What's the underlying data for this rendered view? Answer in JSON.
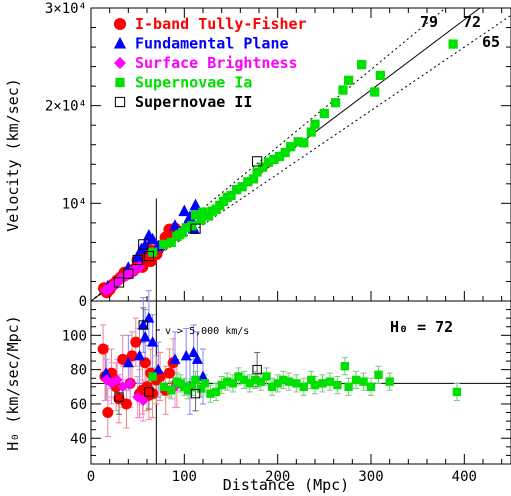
{
  "chart_data": [
    {
      "type": "scatter",
      "panel": "top",
      "xlim": [
        0,
        450
      ],
      "ylim": [
        0,
        30000
      ],
      "ylabel": "Velocity (km/sec)",
      "yticks": [
        {
          "value": 0,
          "label": "0"
        },
        {
          "value": 10000,
          "label": "10⁴"
        },
        {
          "value": 20000,
          "label": "2×10⁴"
        },
        {
          "value": 30000,
          "label": "3×10⁴"
        }
      ],
      "hubble_lines": [
        {
          "label": "79",
          "H0": 79,
          "style": "dotted"
        },
        {
          "label": "72",
          "H0": 72,
          "style": "solid"
        },
        {
          "label": "65",
          "H0": 65,
          "style": "dotted"
        }
      ],
      "vline_x": 70,
      "series": [
        {
          "name": "I-band Tully-Fisher",
          "color": "#ff0000",
          "marker": "circle",
          "points": [
            [
              14,
              1300
            ],
            [
              17,
              900
            ],
            [
              20,
              1200
            ],
            [
              24,
              1700
            ],
            [
              28,
              2100
            ],
            [
              32,
              2400
            ],
            [
              36,
              2900
            ],
            [
              40,
              2800
            ],
            [
              45,
              3100
            ],
            [
              47,
              3300
            ],
            [
              50,
              4200
            ],
            [
              52,
              4300
            ],
            [
              55,
              3500
            ],
            [
              58,
              5000
            ],
            [
              60,
              4700
            ],
            [
              62,
              5200
            ],
            [
              64,
              4100
            ],
            [
              66,
              5100
            ],
            [
              70,
              4800
            ],
            [
              74,
              5600
            ],
            [
              80,
              6500
            ],
            [
              84,
              7300
            ],
            [
              86,
              7100
            ],
            [
              90,
              7400
            ]
          ]
        },
        {
          "name": "Fundamental Plane",
          "color": "#0000ff",
          "marker": "triangle",
          "points": [
            [
              18,
              1500
            ],
            [
              40,
              3400
            ],
            [
              50,
              4500
            ],
            [
              54,
              5300
            ],
            [
              58,
              5700
            ],
            [
              62,
              6700
            ],
            [
              66,
              6300
            ],
            [
              72,
              5600
            ],
            [
              90,
              7700
            ],
            [
              100,
              9200
            ],
            [
              103,
              8000
            ],
            [
              106,
              8600
            ],
            [
              110,
              7400
            ],
            [
              112,
              9800
            ]
          ]
        },
        {
          "name": "Surface Brightness",
          "color": "#ff00ff",
          "marker": "diamond",
          "points": [
            [
              16,
              1100
            ],
            [
              20,
              1300
            ],
            [
              26,
              1800
            ],
            [
              32,
              2300
            ],
            [
              38,
              2600
            ],
            [
              42,
              2900
            ],
            [
              46,
              3100
            ],
            [
              52,
              3500
            ]
          ]
        },
        {
          "name": "Supernovae Ia",
          "color": "#00e000",
          "marker": "square",
          "points": [
            [
              66,
              5000
            ],
            [
              78,
              5800
            ],
            [
              86,
              6000
            ],
            [
              92,
              6600
            ],
            [
              95,
              6800
            ],
            [
              98,
              7000
            ],
            [
              102,
              7500
            ],
            [
              108,
              7700
            ],
            [
              112,
              8800
            ],
            [
              118,
              8300
            ],
            [
              120,
              9100
            ],
            [
              126,
              8700
            ],
            [
              130,
              9200
            ],
            [
              134,
              9400
            ],
            [
              138,
              9800
            ],
            [
              142,
              10200
            ],
            [
              146,
              10600
            ],
            [
              150,
              10800
            ],
            [
              156,
              11400
            ],
            [
              162,
              11700
            ],
            [
              168,
              12200
            ],
            [
              174,
              12500
            ],
            [
              178,
              13200
            ],
            [
              184,
              13700
            ],
            [
              190,
              14200
            ],
            [
              196,
              14500
            ],
            [
              202,
              14800
            ],
            [
              208,
              15200
            ],
            [
              214,
              15800
            ],
            [
              222,
              16300
            ],
            [
              228,
              16200
            ],
            [
              236,
              17300
            ],
            [
              240,
              18100
            ],
            [
              250,
              19200
            ],
            [
              262,
              20300
            ],
            [
              270,
              21600
            ],
            [
              276,
              22600
            ],
            [
              290,
              24200
            ],
            [
              304,
              21400
            ],
            [
              310,
              23100
            ],
            [
              388,
              26300
            ]
          ]
        },
        {
          "name": "Supernovae II",
          "color": "#000000",
          "marker": "open-square",
          "points": [
            [
              30,
              1900
            ],
            [
              40,
              2800
            ],
            [
              50,
              4200
            ],
            [
              56,
              5800
            ],
            [
              62,
              4600
            ],
            [
              112,
              7400
            ],
            [
              178,
              14300
            ]
          ]
        }
      ]
    },
    {
      "type": "scatter",
      "panel": "bottom",
      "xlabel": "Distance (Mpc)",
      "ylabel": "H₀ (km/sec/Mpc)",
      "xlim": [
        0,
        450
      ],
      "ylim": [
        25,
        120
      ],
      "xticks": [
        0,
        100,
        200,
        300,
        400
      ],
      "yticks": [
        40,
        60,
        80,
        100
      ],
      "hline": 72,
      "vline_x": 70,
      "annotation_h0": "H₀  = 72",
      "annotation_cut": "v > 5,000 km/s",
      "series": [
        {
          "name": "I-band Tully-Fisher",
          "color": "#ff0000",
          "marker": "circle",
          "err": 14,
          "points": [
            [
              13,
              92
            ],
            [
              15,
              76
            ],
            [
              18,
              55
            ],
            [
              22,
              78
            ],
            [
              27,
              70
            ],
            [
              30,
              63
            ],
            [
              34,
              86
            ],
            [
              38,
              60
            ],
            [
              42,
              72
            ],
            [
              44,
              88
            ],
            [
              48,
              96
            ],
            [
              52,
              66
            ],
            [
              55,
              68
            ],
            [
              58,
              84
            ],
            [
              60,
              70
            ],
            [
              62,
              65
            ],
            [
              64,
              78
            ],
            [
              66,
              66
            ],
            [
              70,
              74
            ],
            [
              74,
              76
            ],
            [
              80,
              68
            ],
            [
              84,
              78
            ],
            [
              88,
              84
            ],
            [
              92,
              72
            ]
          ]
        },
        {
          "name": "Fundamental Plane",
          "color": "#0000ff",
          "marker": "triangle",
          "err": 16,
          "points": [
            [
              16,
              78
            ],
            [
              40,
              84
            ],
            [
              52,
              88
            ],
            [
              56,
              106
            ],
            [
              58,
              99
            ],
            [
              62,
              110
            ],
            [
              66,
              96
            ],
            [
              72,
              80
            ],
            [
              90,
              86
            ],
            [
              102,
              88
            ],
            [
              106,
              70
            ],
            [
              110,
              90
            ],
            [
              114,
              86
            ],
            [
              120,
              76
            ]
          ]
        },
        {
          "name": "Surface Brightness",
          "color": "#ff00ff",
          "marker": "diamond",
          "err": 12,
          "points": [
            [
              17,
              74
            ],
            [
              22,
              72
            ],
            [
              28,
              74
            ],
            [
              34,
              70
            ],
            [
              42,
              72
            ],
            [
              50,
              64
            ],
            [
              56,
              62
            ],
            [
              90,
              70
            ]
          ]
        },
        {
          "name": "Supernovae Ia",
          "color": "#00e000",
          "marker": "square",
          "err": 5,
          "points": [
            [
              66,
              76
            ],
            [
              78,
              70
            ],
            [
              86,
              68
            ],
            [
              92,
              73
            ],
            [
              96,
              72
            ],
            [
              100,
              70
            ],
            [
              104,
              68
            ],
            [
              108,
              70
            ],
            [
              112,
              74
            ],
            [
              118,
              69
            ],
            [
              122,
              72
            ],
            [
              128,
              66
            ],
            [
              134,
              67
            ],
            [
              140,
              71
            ],
            [
              146,
              73
            ],
            [
              152,
              72
            ],
            [
              158,
              76
            ],
            [
              164,
              74
            ],
            [
              170,
              72
            ],
            [
              176,
              74
            ],
            [
              182,
              73
            ],
            [
              188,
              76
            ],
            [
              194,
              70
            ],
            [
              200,
              72
            ],
            [
              206,
              74
            ],
            [
              212,
              73
            ],
            [
              220,
              72
            ],
            [
              228,
              70
            ],
            [
              236,
              74
            ],
            [
              240,
              71
            ],
            [
              248,
              72
            ],
            [
              256,
              73
            ],
            [
              264,
              71
            ],
            [
              272,
              82
            ],
            [
              276,
              70
            ],
            [
              284,
              74
            ],
            [
              292,
              73
            ],
            [
              300,
              70
            ],
            [
              308,
              77
            ],
            [
              320,
              73
            ],
            [
              392,
              67
            ]
          ]
        },
        {
          "name": "Supernovae II",
          "color": "#000000",
          "marker": "open-square",
          "err": 10,
          "points": [
            [
              30,
              64
            ],
            [
              56,
              106
            ],
            [
              62,
              67
            ],
            [
              112,
              66
            ],
            [
              178,
              80
            ]
          ]
        }
      ]
    }
  ],
  "legend": [
    {
      "label": "I-band Tully-Fisher",
      "color": "#ff0000",
      "marker": "circle"
    },
    {
      "label": "Fundamental Plane",
      "color": "#0000ff",
      "marker": "triangle"
    },
    {
      "label": "Surface Brightness",
      "color": "#ff00ff",
      "marker": "diamond"
    },
    {
      "label": "Supernovae Ia",
      "color": "#00e000",
      "marker": "square"
    },
    {
      "label": "Supernovae II",
      "color": "#000000",
      "marker": "open-square"
    }
  ]
}
